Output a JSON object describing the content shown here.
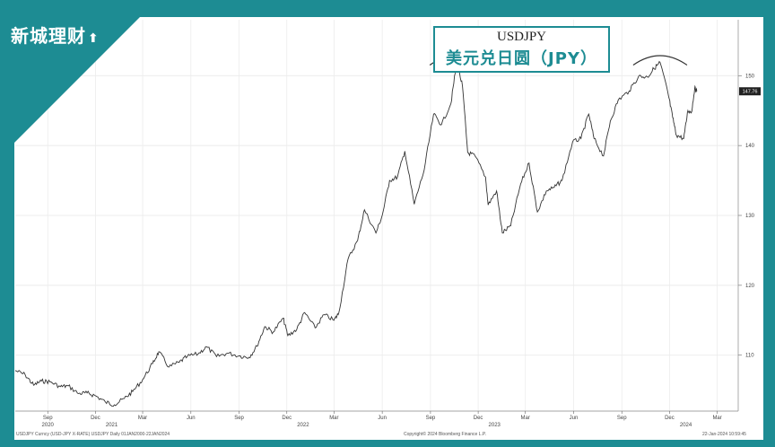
{
  "brand": {
    "name": "新城理财",
    "arrow_icon": "up-arrow-icon"
  },
  "colors": {
    "accent": "#1d8c93",
    "line": "#333333"
  },
  "annotation": {
    "box_title": "USDJPY",
    "box_subtitle": "美元兑日圆（JPY）",
    "peak_marks": 2
  },
  "footer": {
    "left": "USDJPY Curncy (USD-JPY X-RATE) USDJPY  Daily 01JAN2000-22JAN2024",
    "center": "Copyright© 2024 Bloomberg Finance L.P.",
    "right": "22-Jan-2024 10:59:45"
  },
  "chart_data": {
    "type": "line",
    "title": "USDJPY",
    "xlabel": "",
    "ylabel": "",
    "last_value_label": "147.76",
    "grid": true,
    "ylim": [
      102,
      158
    ],
    "xlim": [
      "2020-07-01",
      "2024-04-10"
    ],
    "yticks": [
      110,
      120,
      130,
      140,
      150
    ],
    "xticks": [
      {
        "date": "2020-09-01",
        "label": "Sep"
      },
      {
        "date": "2020-12-01",
        "label": "Dec"
      },
      {
        "date": "2021-03-01",
        "label": "Mar"
      },
      {
        "date": "2021-06-01",
        "label": "Jun"
      },
      {
        "date": "2021-09-01",
        "label": "Sep"
      },
      {
        "date": "2021-12-01",
        "label": "Dec"
      },
      {
        "date": "2022-03-01",
        "label": "Mar"
      },
      {
        "date": "2022-06-01",
        "label": "Jun"
      },
      {
        "date": "2022-09-01",
        "label": "Sep"
      },
      {
        "date": "2022-12-01",
        "label": "Dec"
      },
      {
        "date": "2023-03-01",
        "label": "Mar"
      },
      {
        "date": "2023-06-01",
        "label": "Jun"
      },
      {
        "date": "2023-09-01",
        "label": "Sep"
      },
      {
        "date": "2023-12-01",
        "label": "Dec"
      },
      {
        "date": "2024-03-01",
        "label": "Mar"
      }
    ],
    "year_labels": [
      {
        "date": "2020-09-01",
        "label": "2020"
      },
      {
        "date": "2021-01-01",
        "label": "2021"
      },
      {
        "date": "2022-01-01",
        "label": "2022"
      },
      {
        "date": "2023-01-01",
        "label": "2023"
      },
      {
        "date": "2024-01-01",
        "label": "2024"
      }
    ],
    "series": [
      {
        "points": [
          [
            "2020-07-01",
            107.8
          ],
          [
            "2020-07-20",
            107.2
          ],
          [
            "2020-08-05",
            105.7
          ],
          [
            "2020-08-20",
            106.3
          ],
          [
            "2020-09-05",
            106.2
          ],
          [
            "2020-09-25",
            105.5
          ],
          [
            "2020-10-10",
            105.6
          ],
          [
            "2020-10-30",
            104.5
          ],
          [
            "2020-11-15",
            104.6
          ],
          [
            "2020-12-01",
            104.2
          ],
          [
            "2020-12-20",
            103.3
          ],
          [
            "2021-01-06",
            102.9
          ],
          [
            "2021-01-25",
            103.8
          ],
          [
            "2021-02-10",
            104.8
          ],
          [
            "2021-03-01",
            106.5
          ],
          [
            "2021-03-20",
            108.8
          ],
          [
            "2021-04-01",
            110.5
          ],
          [
            "2021-04-20",
            108.3
          ],
          [
            "2021-05-10",
            109.0
          ],
          [
            "2021-05-25",
            109.8
          ],
          [
            "2021-06-15",
            110.2
          ],
          [
            "2021-07-01",
            111.2
          ],
          [
            "2021-07-20",
            109.8
          ],
          [
            "2021-08-10",
            110.3
          ],
          [
            "2021-09-01",
            109.9
          ],
          [
            "2021-09-20",
            109.7
          ],
          [
            "2021-10-05",
            111.3
          ],
          [
            "2021-10-20",
            114.1
          ],
          [
            "2021-11-05",
            113.3
          ],
          [
            "2021-11-24",
            115.3
          ],
          [
            "2021-12-03",
            112.8
          ],
          [
            "2021-12-20",
            113.7
          ],
          [
            "2022-01-04",
            116.1
          ],
          [
            "2022-01-24",
            113.9
          ],
          [
            "2022-02-10",
            115.8
          ],
          [
            "2022-03-01",
            115.0
          ],
          [
            "2022-03-10",
            116.0
          ],
          [
            "2022-03-28",
            123.8
          ],
          [
            "2022-04-15",
            126.4
          ],
          [
            "2022-04-28",
            130.8
          ],
          [
            "2022-05-20",
            127.5
          ],
          [
            "2022-06-01",
            130.0
          ],
          [
            "2022-06-15",
            135.0
          ],
          [
            "2022-06-30",
            135.5
          ],
          [
            "2022-07-14",
            139.2
          ],
          [
            "2022-08-01",
            131.6
          ],
          [
            "2022-08-20",
            136.5
          ],
          [
            "2022-09-07",
            144.5
          ],
          [
            "2022-09-22",
            143.0
          ],
          [
            "2022-10-10",
            146.0
          ],
          [
            "2022-10-21",
            151.9
          ],
          [
            "2022-11-01",
            148.5
          ],
          [
            "2022-11-11",
            139.0
          ],
          [
            "2022-11-25",
            138.5
          ],
          [
            "2022-12-15",
            135.5
          ],
          [
            "2022-12-20",
            131.5
          ],
          [
            "2023-01-05",
            133.5
          ],
          [
            "2023-01-16",
            127.5
          ],
          [
            "2023-02-01",
            128.5
          ],
          [
            "2023-02-20",
            134.5
          ],
          [
            "2023-03-08",
            137.5
          ],
          [
            "2023-03-24",
            130.5
          ],
          [
            "2023-04-10",
            133.5
          ],
          [
            "2023-04-25",
            134.0
          ],
          [
            "2023-05-10",
            135.0
          ],
          [
            "2023-05-30",
            140.5
          ],
          [
            "2023-06-15",
            141.0
          ],
          [
            "2023-06-30",
            144.5
          ],
          [
            "2023-07-10",
            141.0
          ],
          [
            "2023-07-28",
            138.5
          ],
          [
            "2023-08-10",
            143.5
          ],
          [
            "2023-08-25",
            146.5
          ],
          [
            "2023-09-15",
            147.8
          ],
          [
            "2023-10-03",
            149.9
          ],
          [
            "2023-10-20",
            149.8
          ],
          [
            "2023-11-01",
            151.0
          ],
          [
            "2023-11-13",
            151.9
          ],
          [
            "2023-11-28",
            147.5
          ],
          [
            "2023-12-07",
            144.0
          ],
          [
            "2023-12-14",
            141.5
          ],
          [
            "2023-12-28",
            141.0
          ],
          [
            "2024-01-05",
            145.0
          ],
          [
            "2024-01-12",
            144.8
          ],
          [
            "2024-01-18",
            148.2
          ],
          [
            "2024-01-22",
            147.76
          ]
        ]
      }
    ]
  }
}
